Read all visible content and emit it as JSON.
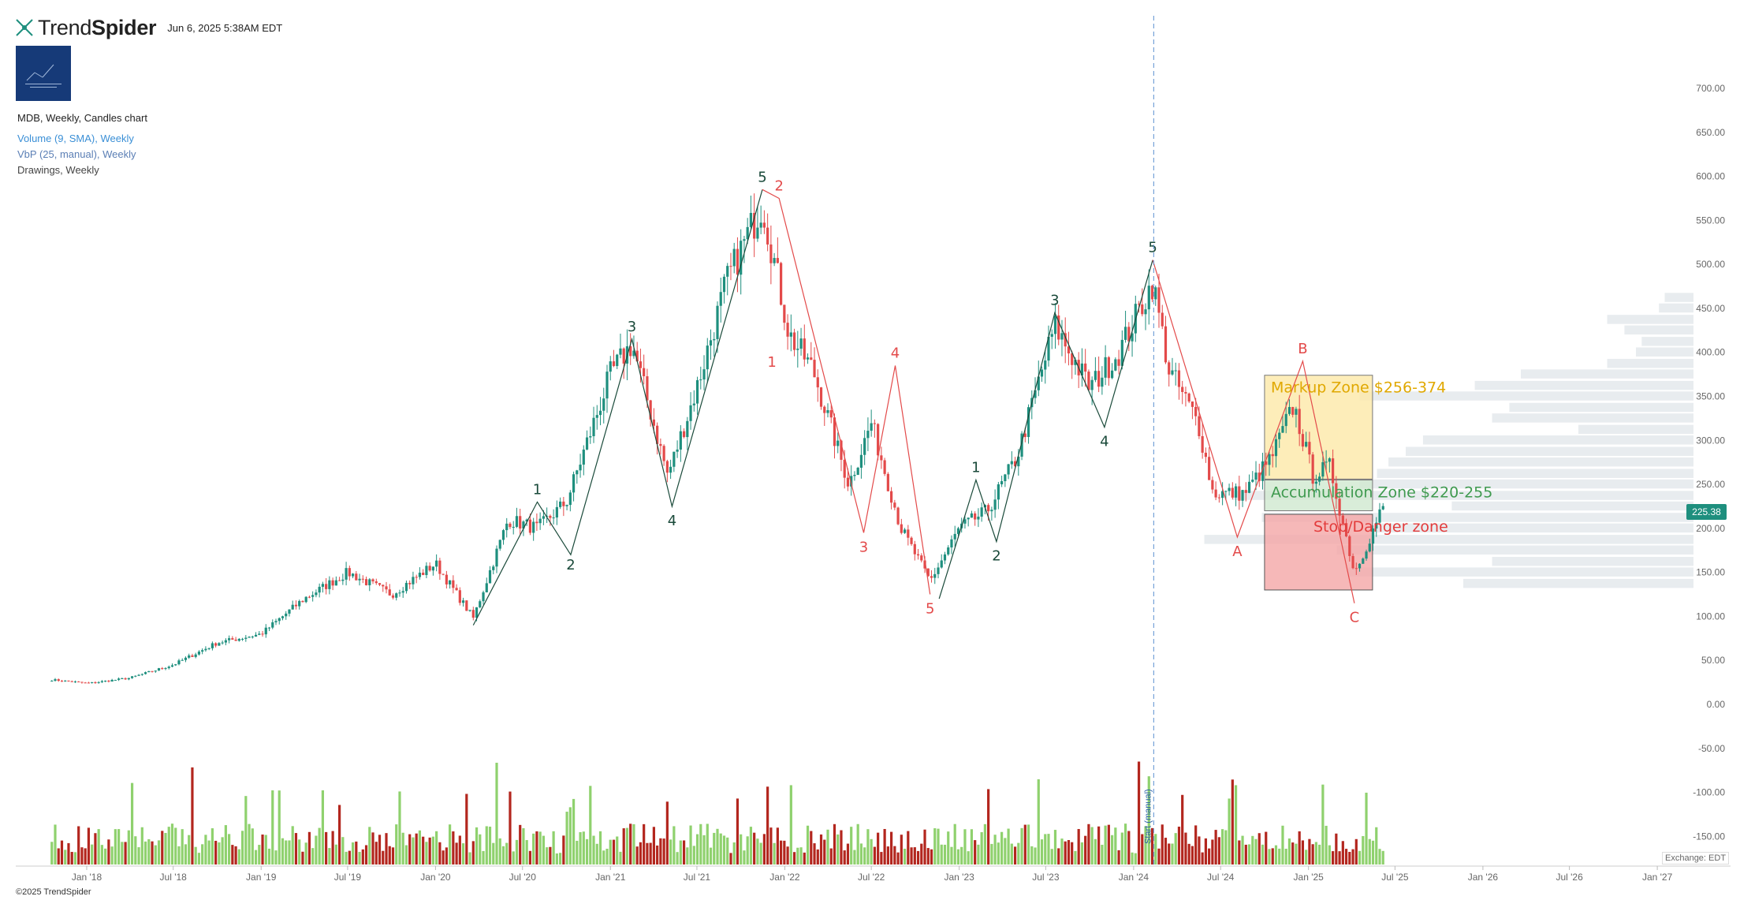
{
  "header": {
    "brand_light": "Trend",
    "brand_bold": "Spider",
    "timestamp": "Jun 6, 2025 5:38AM EDT"
  },
  "legend": {
    "main": "MDB, Weekly, Candles chart",
    "volume": "Volume (9, SMA), Weekly",
    "vbp": "VbP (25, manual), Weekly",
    "drawings": "Drawings, Weekly"
  },
  "footer": {
    "copyright": "©2025 TrendSpider",
    "exchange": "Exchange: EDT"
  },
  "price_tag": "225.38",
  "colors": {
    "up": "#1e8f7e",
    "down": "#e34a4a",
    "vol_up": "#8fd16e",
    "vol_down": "#b3261e",
    "wave_green": "#1a4a3a",
    "wave_red": "#e34a4a",
    "markup_zone": "#fde9a8",
    "accumulation_zone": "#cfe8cf",
    "stop_zone": "#f4a6a6",
    "vbp": "#e8ecef"
  },
  "chart_data": {
    "type": "candlestick",
    "symbol": "MDB",
    "timeframe": "Weekly",
    "yaxis": {
      "ticks": [
        700,
        650,
        600,
        550,
        500,
        450,
        400,
        350,
        300,
        250,
        200,
        150,
        100,
        50,
        0,
        -50,
        -100,
        -150
      ],
      "tick_labels": [
        "700.00",
        "650.00",
        "600.00",
        "550.00",
        "500.00",
        "450.00",
        "400.00",
        "350.00",
        "300.00",
        "250.00",
        "200.00",
        "150.00",
        "100.00",
        "50.00",
        "0.00",
        "-50.00",
        "-100.00",
        "-150.00"
      ]
    },
    "xaxis": {
      "tick_labels": [
        "Jan '18",
        "Jul '18",
        "Jan '19",
        "Jul '19",
        "Jan '20",
        "Jul '20",
        "Jan '21",
        "Jul '21",
        "Jan '22",
        "Jul '22",
        "Jan '23",
        "Jul '23",
        "Jan '24",
        "Jul '24",
        "Jan '25",
        "Jul '25",
        "Jan '26",
        "Jul '26",
        "Jan '27"
      ]
    },
    "price_path": [
      [
        "2017-10-20",
        28
      ],
      [
        "2018-01-05",
        24
      ],
      [
        "2018-04-01",
        30
      ],
      [
        "2018-07-01",
        45
      ],
      [
        "2018-10-01",
        70
      ],
      [
        "2019-01-01",
        80
      ],
      [
        "2019-04-01",
        120
      ],
      [
        "2019-07-01",
        150
      ],
      [
        "2019-10-01",
        125
      ],
      [
        "2020-01-01",
        160
      ],
      [
        "2020-03-20",
        98
      ],
      [
        "2020-06-01",
        210
      ],
      [
        "2020-08-01",
        200
      ],
      [
        "2020-10-01",
        230
      ],
      [
        "2021-01-01",
        375
      ],
      [
        "2021-02-15",
        410
      ],
      [
        "2021-05-01",
        260
      ],
      [
        "2021-07-01",
        360
      ],
      [
        "2021-09-01",
        480
      ],
      [
        "2021-11-15",
        570
      ],
      [
        "2022-01-10",
        420
      ],
      [
        "2022-03-01",
        380
      ],
      [
        "2022-05-15",
        250
      ],
      [
        "2022-07-01",
        320
      ],
      [
        "2022-09-01",
        200
      ],
      [
        "2022-11-01",
        140
      ],
      [
        "2023-01-01",
        200
      ],
      [
        "2023-03-01",
        220
      ],
      [
        "2023-05-01",
        280
      ],
      [
        "2023-07-20",
        430
      ],
      [
        "2023-10-01",
        360
      ],
      [
        "2023-12-01",
        400
      ],
      [
        "2024-02-10",
        480
      ],
      [
        "2024-03-15",
        380
      ],
      [
        "2024-05-15",
        320
      ],
      [
        "2024-06-15",
        240
      ],
      [
        "2024-08-20",
        240
      ],
      [
        "2024-10-15",
        280
      ],
      [
        "2024-12-01",
        340
      ],
      [
        "2025-01-10",
        260
      ],
      [
        "2025-02-15",
        270
      ],
      [
        "2025-04-07",
        150
      ],
      [
        "2025-05-10",
        190
      ],
      [
        "2025-06-06",
        225.38
      ]
    ],
    "annotations": {
      "vertical_marker": {
        "label": "Start (manual)",
        "date": "2024-02-12"
      },
      "zones": [
        {
          "label": "Markup Zone $256-374",
          "low": 256,
          "high": 374,
          "start": "2024-10-01",
          "end": "2025-05-15",
          "color": "#fde9a8"
        },
        {
          "label": "Accumulation Zone $220-255",
          "low": 220,
          "high": 255,
          "start": "2024-10-01",
          "end": "2025-05-15",
          "color": "#cfe8cf"
        },
        {
          "label": "Stop/Danger zone",
          "low": 130,
          "high": 216,
          "start": "2024-10-01",
          "end": "2025-05-15",
          "color": "#f4a6a6"
        }
      ],
      "waves_green": [
        {
          "label": "1",
          "date": "2020-08-01",
          "price": 230,
          "pos": "above"
        },
        {
          "label": "2",
          "date": "2020-10-10",
          "price": 175,
          "pos": "below"
        },
        {
          "label": "3",
          "date": "2021-02-15",
          "price": 415,
          "pos": "above"
        },
        {
          "label": "4",
          "date": "2021-05-10",
          "price": 225,
          "pos": "below"
        },
        {
          "label": "5",
          "date": "2021-11-15",
          "price": 585,
          "pos": "above"
        },
        {
          "label": "1",
          "date": "2023-02-05",
          "price": 255,
          "pos": "above"
        },
        {
          "label": "2",
          "date": "2023-03-20",
          "price": 185,
          "pos": "below"
        },
        {
          "label": "3",
          "date": "2023-07-20",
          "price": 445,
          "pos": "above"
        },
        {
          "label": "4",
          "date": "2023-11-01",
          "price": 315,
          "pos": "below"
        },
        {
          "label": "5",
          "date": "2024-02-10",
          "price": 505,
          "pos": "above"
        }
      ],
      "waves_red": [
        {
          "label": "2",
          "date": "2021-12-20",
          "price": 575,
          "pos": "above"
        },
        {
          "label": "1",
          "date": "2021-12-05",
          "price": 405,
          "pos": "below"
        },
        {
          "label": "3",
          "date": "2022-06-15",
          "price": 195,
          "pos": "below"
        },
        {
          "label": "4",
          "date": "2022-08-20",
          "price": 385,
          "pos": "above"
        },
        {
          "label": "5",
          "date": "2022-11-01",
          "price": 125,
          "pos": "below"
        },
        {
          "label": "A",
          "date": "2024-08-05",
          "price": 190,
          "pos": "below"
        },
        {
          "label": "B",
          "date": "2024-12-20",
          "price": 390,
          "pos": "above"
        },
        {
          "label": "C",
          "date": "2025-04-07",
          "price": 115,
          "pos": "below"
        }
      ],
      "wave_lines_green": [
        [
          [
            "2020-03-20",
            90
          ],
          [
            "2020-08-01",
            230
          ],
          [
            "2020-10-10",
            170
          ],
          [
            "2021-02-15",
            415
          ],
          [
            "2021-05-10",
            225
          ],
          [
            "2021-11-15",
            585
          ]
        ],
        [
          [
            "2022-11-20",
            120
          ],
          [
            "2023-02-05",
            255
          ],
          [
            "2023-03-20",
            185
          ],
          [
            "2023-07-20",
            445
          ],
          [
            "2023-11-01",
            315
          ],
          [
            "2024-02-10",
            505
          ]
        ]
      ],
      "wave_lines_red": [
        [
          [
            "2021-11-15",
            585
          ],
          [
            "2021-12-20",
            575
          ],
          [
            "2022-06-15",
            195
          ],
          [
            "2022-08-20",
            385
          ],
          [
            "2022-11-01",
            125
          ]
        ],
        [
          [
            "2024-02-10",
            505
          ],
          [
            "2024-08-05",
            190
          ],
          [
            "2024-12-20",
            390
          ],
          [
            "2025-04-07",
            115
          ]
        ]
      ]
    },
    "volume_profile": [
      {
        "price": 462,
        "volume": 0.05
      },
      {
        "price": 450,
        "volume": 0.06
      },
      {
        "price": 437,
        "volume": 0.15
      },
      {
        "price": 425,
        "volume": 0.12
      },
      {
        "price": 412,
        "volume": 0.09
      },
      {
        "price": 400,
        "volume": 0.1
      },
      {
        "price": 387,
        "volume": 0.15
      },
      {
        "price": 375,
        "volume": 0.3
      },
      {
        "price": 362,
        "volume": 0.38
      },
      {
        "price": 350,
        "volume": 0.58
      },
      {
        "price": 337,
        "volume": 0.32
      },
      {
        "price": 325,
        "volume": 0.35
      },
      {
        "price": 312,
        "volume": 0.2
      },
      {
        "price": 300,
        "volume": 0.47
      },
      {
        "price": 287,
        "volume": 0.5
      },
      {
        "price": 275,
        "volume": 0.53
      },
      {
        "price": 262,
        "volume": 0.55
      },
      {
        "price": 250,
        "volume": 0.58
      },
      {
        "price": 237,
        "volume": 0.8
      },
      {
        "price": 225,
        "volume": 0.42
      },
      {
        "price": 212,
        "volume": 0.75
      },
      {
        "price": 200,
        "volume": 0.55
      },
      {
        "price": 187,
        "volume": 0.85
      },
      {
        "price": 175,
        "volume": 0.62
      },
      {
        "price": 162,
        "volume": 0.35
      },
      {
        "price": 150,
        "volume": 0.6
      },
      {
        "price": 137,
        "volume": 0.4
      }
    ]
  }
}
